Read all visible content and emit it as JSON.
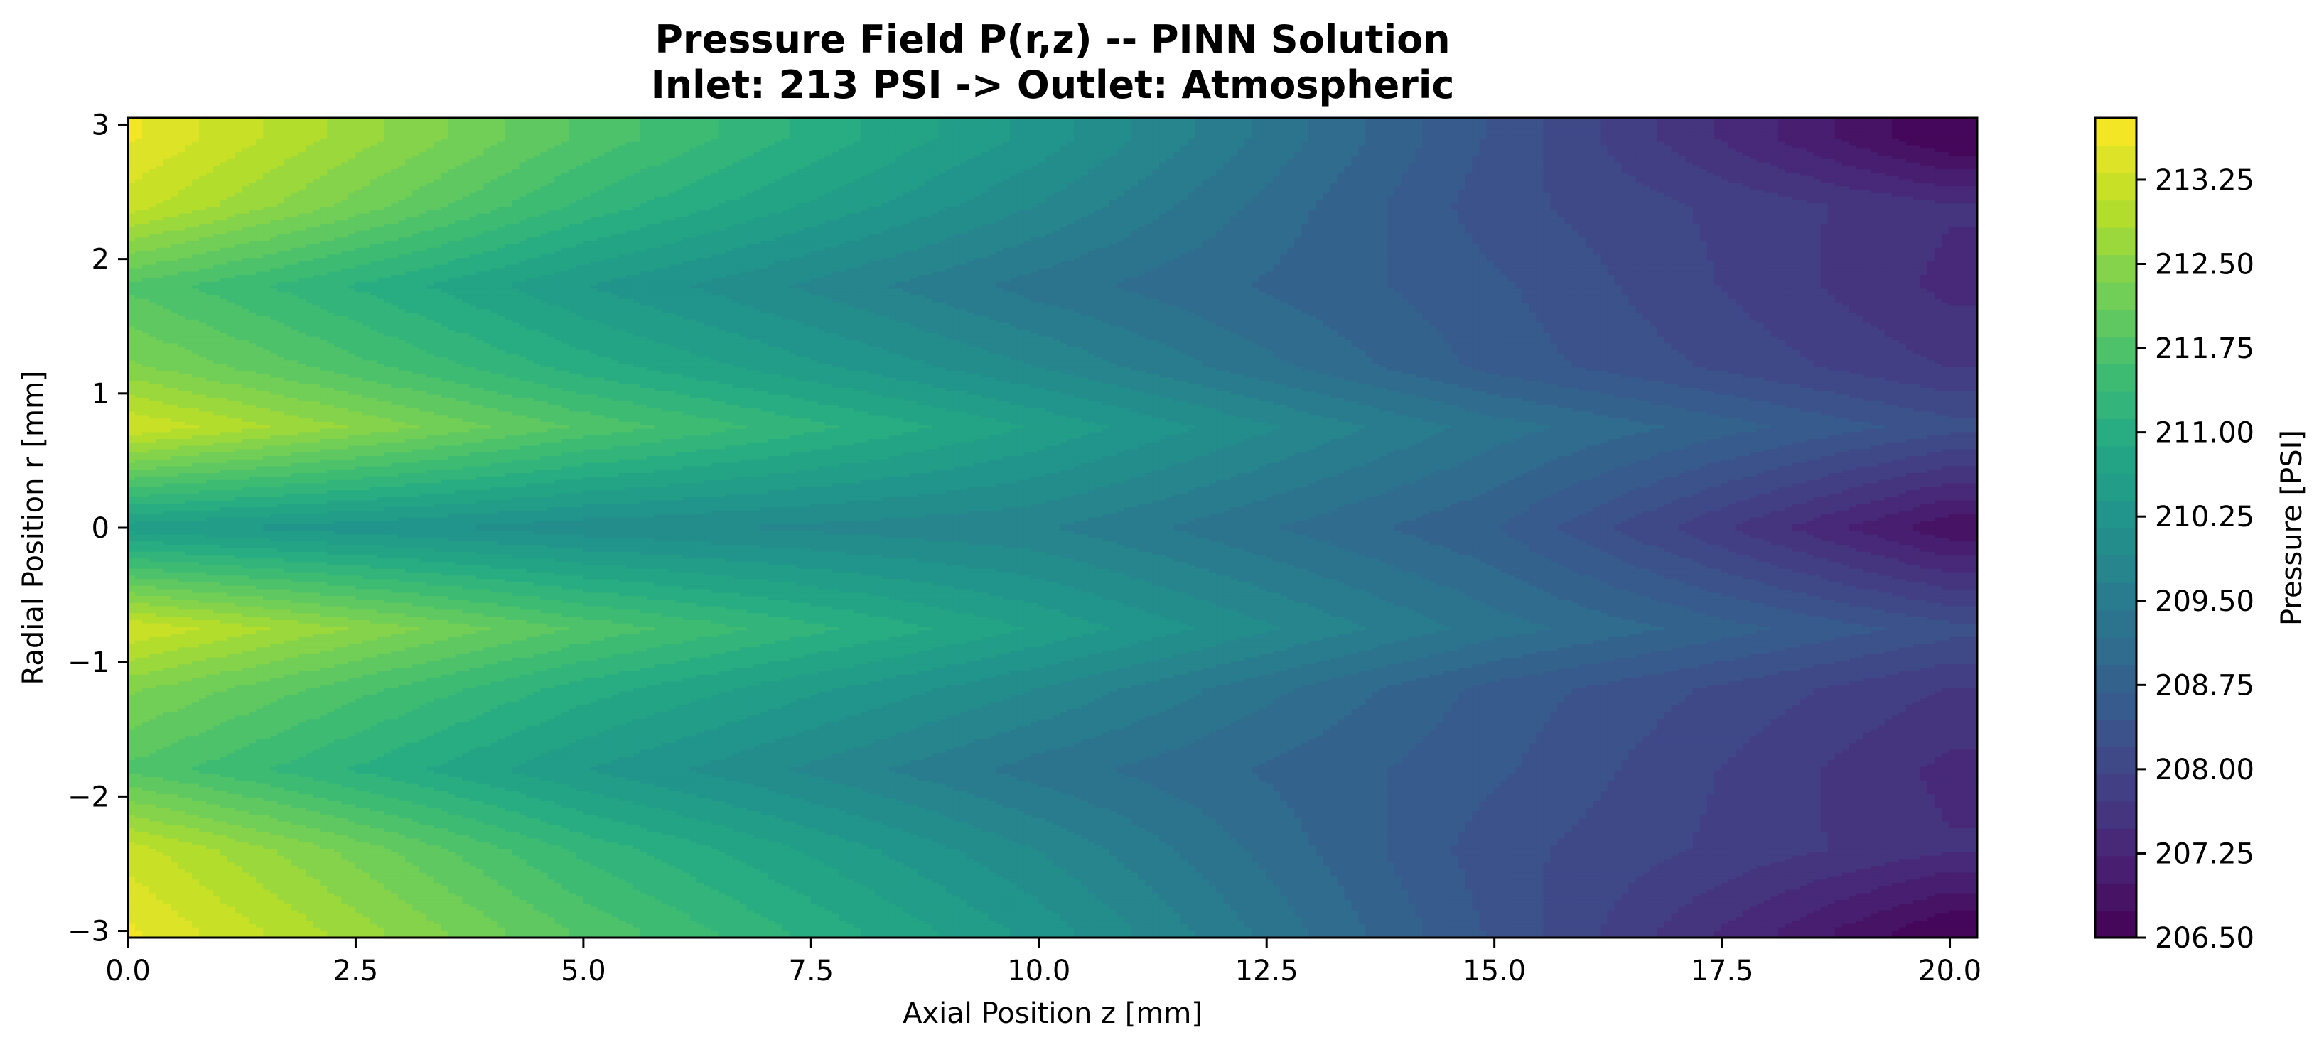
{
  "chart_data": {
    "type": "heatmap",
    "subtype": "filled-contour",
    "title": "Pressure Field P(r,z) -- PINN Solution",
    "subtitle": "Inlet: 213 PSI -> Outlet: Atmospheric",
    "xlabel": "Axial Position z [mm]",
    "ylabel": "Radial Position r [mm]",
    "colorbar_label": "Pressure [PSI]",
    "colormap": "viridis",
    "xlim": [
      0,
      20.3
    ],
    "ylim": [
      -3.05,
      3.05
    ],
    "x_ticks": [
      0,
      2.5,
      5,
      7.5,
      10,
      12.5,
      15,
      17.5,
      20
    ],
    "x_tick_labels": [
      "0.0",
      "2.5",
      "5.0",
      "7.5",
      "10.0",
      "12.5",
      "15.0",
      "17.5",
      "20.0"
    ],
    "y_ticks": [
      3,
      2,
      1,
      0,
      -1,
      -2,
      -3
    ],
    "y_tick_labels": [
      "3",
      "2",
      "1",
      "0",
      "−1",
      "−2",
      "−3"
    ],
    "colorbar_range": [
      206.5,
      213.8
    ],
    "colorbar_ticks": [
      206.5,
      207.25,
      208.0,
      208.75,
      209.5,
      210.25,
      211.0,
      211.75,
      212.5,
      213.25
    ],
    "colorbar_tick_labels": [
      "206.50",
      "207.25",
      "208.00",
      "208.75",
      "209.50",
      "210.25",
      "211.00",
      "211.75",
      "212.50",
      "213.25"
    ],
    "contour_levels": 30,
    "field_samples": {
      "r": [
        -3,
        -2.4,
        -1.8,
        -1.2,
        -0.75,
        0,
        0.75,
        1.2,
        1.8,
        2.4,
        2.9
      ],
      "z": [
        0,
        5,
        10,
        15,
        20
      ],
      "pressure": [
        [
          213.6,
          211.8,
          210.3,
          208.4,
          206.5
        ],
        [
          213.2,
          211.3,
          209.9,
          208.3,
          207.5
        ],
        [
          211.8,
          210.4,
          209.3,
          208.5,
          207.4
        ],
        [
          212.4,
          211.0,
          209.9,
          208.6,
          207.7
        ],
        [
          213.3,
          211.8,
          210.6,
          209.3,
          208.3
        ],
        [
          210.5,
          210.0,
          209.7,
          208.7,
          206.8
        ],
        [
          213.3,
          211.8,
          210.6,
          209.3,
          208.3
        ],
        [
          212.4,
          211.0,
          209.9,
          208.6,
          207.7
        ],
        [
          211.8,
          210.4,
          209.3,
          208.5,
          207.4
        ],
        [
          213.2,
          211.3,
          209.9,
          208.3,
          207.5
        ],
        [
          213.6,
          211.8,
          210.3,
          208.4,
          206.5
        ]
      ]
    }
  }
}
